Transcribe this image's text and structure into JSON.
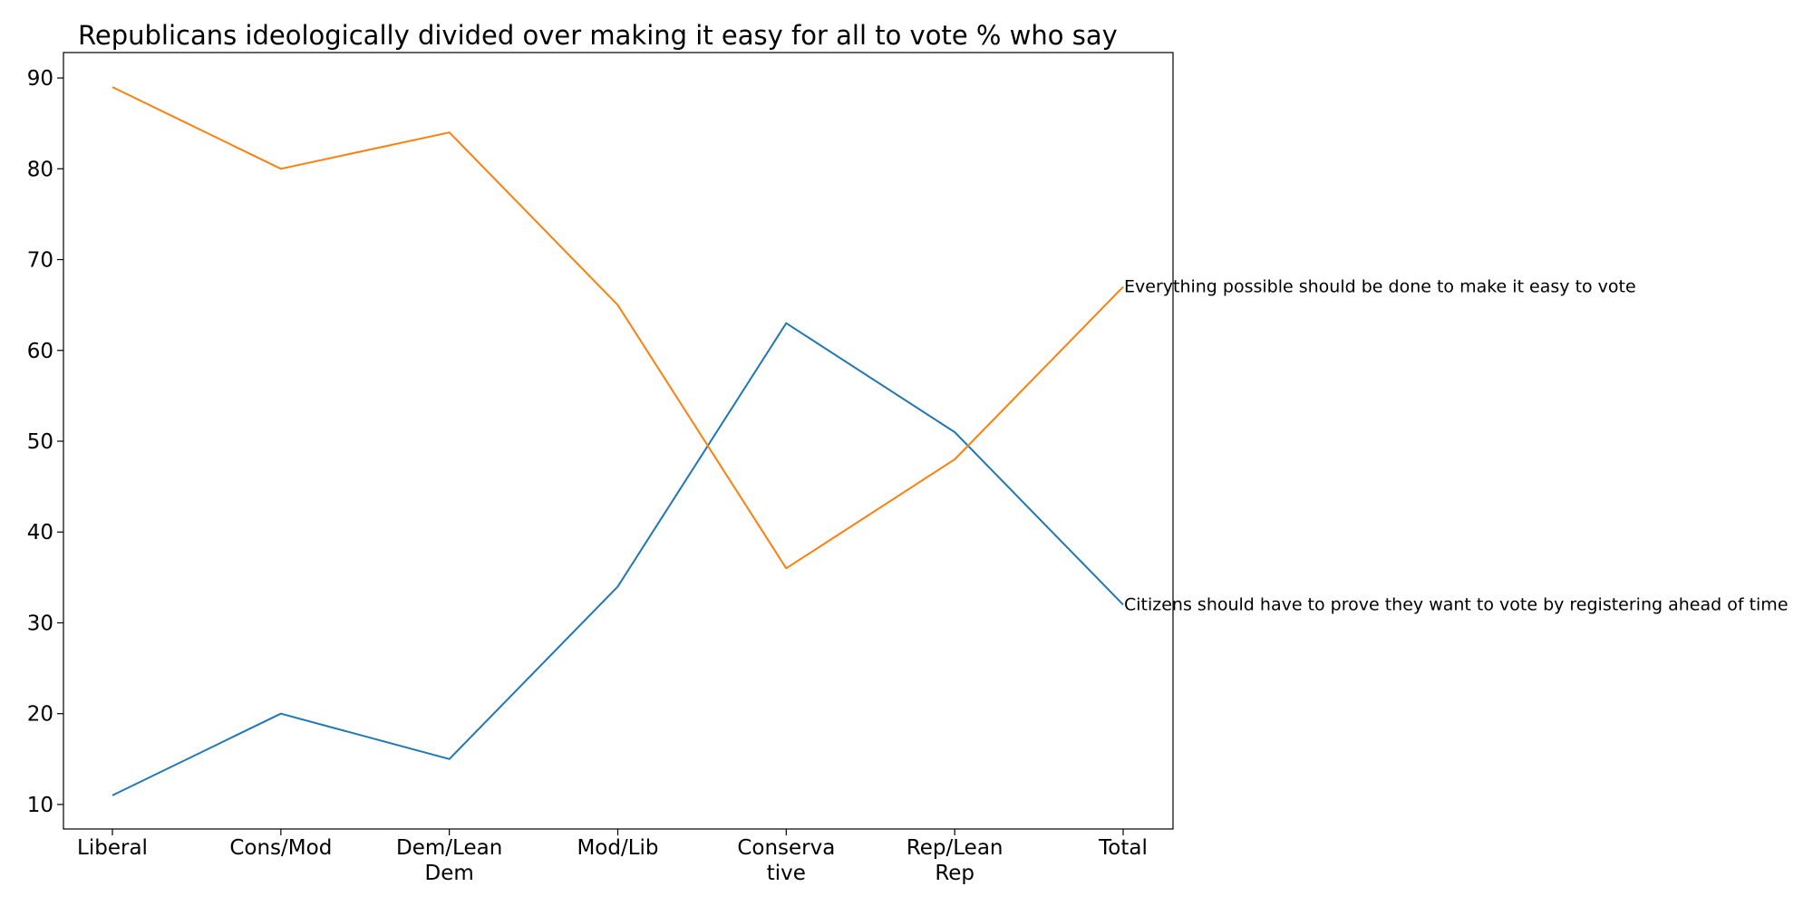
{
  "chart_data": {
    "type": "line",
    "title": "Republicans ideologically divided over making it easy for all to vote % who say",
    "xlabel": "",
    "ylabel": "",
    "categories": [
      [
        "Liberal"
      ],
      [
        "Cons/Mod"
      ],
      [
        "Dem/Lean",
        "Dem"
      ],
      [
        "Mod/Lib"
      ],
      [
        "Conserva",
        "tive"
      ],
      [
        "Rep/Lean",
        "Rep"
      ],
      [
        "Total"
      ]
    ],
    "ylim": [
      7.3,
      92.8
    ],
    "yticks": [
      10,
      20,
      30,
      40,
      50,
      60,
      70,
      80,
      90
    ],
    "grid": false,
    "legend": "none (series labeled at line ends)",
    "series": [
      {
        "name": "Citizens should have to prove they want to vote by registering ahead of time",
        "color": "#1f77b4",
        "values": [
          11,
          20,
          15,
          34,
          63,
          51,
          32
        ]
      },
      {
        "name": "Everything possible should be done to make it easy to vote",
        "color": "#ff7f0e",
        "values": [
          89,
          80,
          84,
          65,
          36,
          48,
          67
        ]
      }
    ]
  }
}
